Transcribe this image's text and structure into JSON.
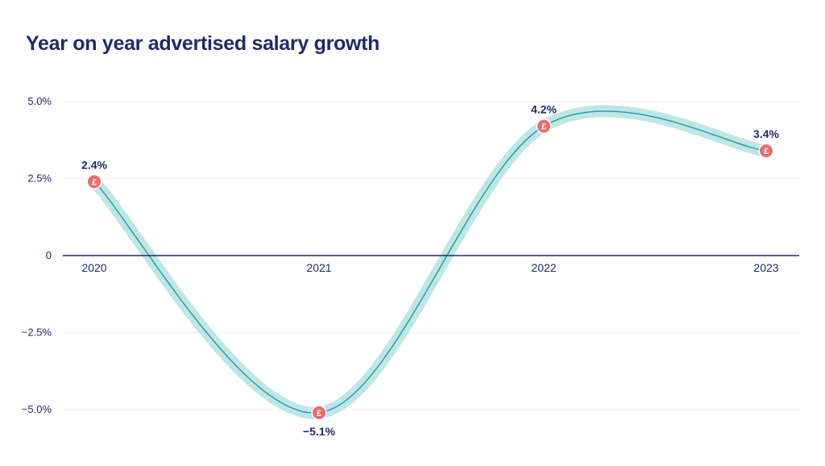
{
  "title": "Year on year advertised salary growth",
  "colors": {
    "title": "#1f2a6b",
    "axis": "#1f2a6b",
    "grid": "#eeeeee",
    "line": "#2a9ea3",
    "halo": "#bfe6e7",
    "marker": "#ee6b6b"
  },
  "chart_data": {
    "type": "line",
    "title": "Year on year advertised salary growth",
    "xlabel": "",
    "ylabel": "",
    "categories": [
      "2020",
      "2021",
      "2022",
      "2023"
    ],
    "values": [
      2.4,
      -5.1,
      4.2,
      3.4
    ],
    "data_labels": [
      "2.4%",
      "-5.1%",
      "4.2%",
      "3.4%"
    ],
    "ylim": [
      -5.0,
      5.0
    ],
    "yticks": [
      {
        "value": 5.0,
        "label": "5.0%"
      },
      {
        "value": 2.5,
        "label": "2.5%"
      },
      {
        "value": 0,
        "label": "0"
      },
      {
        "value": -2.5,
        "label": "-2.5%"
      },
      {
        "value": -5.0,
        "label": "-5.0%"
      }
    ],
    "grid": true,
    "marker_icon": "pound-icon",
    "marker_glyph": "£",
    "smooth": true
  }
}
